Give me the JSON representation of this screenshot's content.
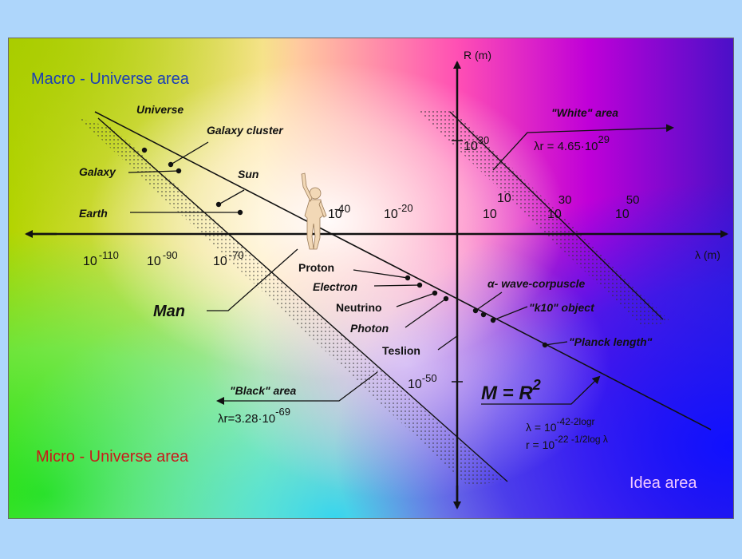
{
  "colors": {
    "page_background": "#aed6fb",
    "macro_label": "#1b3fb5",
    "micro_label": "#c81a1a",
    "idea_label": "#f1c8ff",
    "lines": "#111111"
  },
  "areas": {
    "macro": "Macro - Universe area",
    "micro": "Micro - Universe area",
    "idea": "Idea area"
  },
  "axes": {
    "y_label": "R (m)",
    "x_label": "λ (m)",
    "y_ticks": [
      {
        "base": "10",
        "exp": "30"
      },
      {
        "base": "10",
        "exp": "-50"
      }
    ],
    "x_ticks_negative": [
      {
        "base": "10",
        "exp": "-110"
      },
      {
        "base": "10",
        "exp": "-90"
      },
      {
        "base": "10",
        "exp": "-70"
      }
    ],
    "x_ticks_upper": [
      {
        "base": "",
        "exp": "-40"
      },
      {
        "base": "10",
        "exp": "-20"
      },
      {
        "base": "10",
        "exp": ""
      },
      {
        "base": "10",
        "exp": "30"
      },
      {
        "base": "10",
        "exp": "50"
      }
    ],
    "x_tick_pre10": "10"
  },
  "macro_objects": [
    "Universe",
    "Galaxy cluster",
    "Galaxy",
    "Sun",
    "Earth"
  ],
  "man_label": "Man",
  "micro_objects": [
    "Proton",
    "Electron",
    "Neutrino",
    "Photon",
    "Teslion"
  ],
  "right_objects": [
    "α- wave-corpuscle",
    "\"k10\" object",
    "\"Planck length\""
  ],
  "white_area": {
    "label": "\"White\" area",
    "formula_prefix": "λr = 4.65·10",
    "formula_exp": "29"
  },
  "black_area": {
    "label": "\"Black\" area",
    "formula_prefix": "λr=3.28·10",
    "formula_exp": "-69"
  },
  "equations": {
    "main_prefix": "M = R",
    "main_exp": "2",
    "lambda_prefix": "λ = 10",
    "lambda_exp": "-42-2logr",
    "r_prefix": "r = 10",
    "r_exp": "-22 -1/2log λ"
  }
}
